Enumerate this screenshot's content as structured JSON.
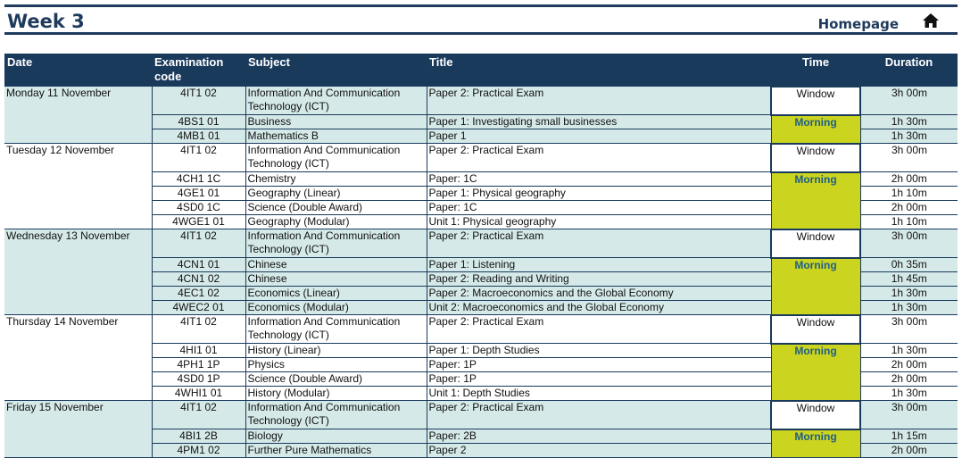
{
  "header": {
    "title": "Week 3",
    "homepage_label": "Homepage"
  },
  "columns": {
    "date": "Date",
    "code": "Examination code",
    "subject": "Subject",
    "title": "Title",
    "time": "Time",
    "duration": "Duration"
  },
  "days": [
    {
      "date": "Monday 11 November",
      "window": {
        "code": "4IT1 02",
        "subject": "Information And Communication Technology (ICT)",
        "title": "Paper 2: Practical Exam",
        "time": "Window",
        "duration": "3h 00m"
      },
      "morning_label": "Morning",
      "exams": [
        {
          "code": "4BS1 01",
          "subject": "Business",
          "title": "Paper 1: Investigating small businesses",
          "duration": "1h 30m"
        },
        {
          "code": "4MB1 01",
          "subject": "Mathematics B",
          "title": "Paper 1",
          "duration": "1h 30m"
        }
      ]
    },
    {
      "date": "Tuesday 12 November",
      "window": {
        "code": "4IT1 02",
        "subject": "Information And Communication Technology (ICT)",
        "title": "Paper 2: Practical Exam",
        "time": "Window",
        "duration": "3h 00m"
      },
      "morning_label": "Morning",
      "exams": [
        {
          "code": "4CH1 1C",
          "subject": "Chemistry",
          "title": "Paper: 1C",
          "duration": "2h 00m"
        },
        {
          "code": "4GE1 01",
          "subject": "Geography (Linear)",
          "title": "Paper 1: Physical geography",
          "duration": "1h 10m"
        },
        {
          "code": "4SD0 1C",
          "subject": "Science (Double Award)",
          "title": "Paper: 1C",
          "duration": "2h 00m"
        },
        {
          "code": "4WGE1 01",
          "subject": "Geography (Modular)",
          "title": "Unit 1: Physical geography",
          "duration": "1h 10m"
        }
      ]
    },
    {
      "date": "Wednesday 13 November",
      "window": {
        "code": "4IT1 02",
        "subject": "Information And Communication Technology (ICT)",
        "title": "Paper 2: Practical Exam",
        "time": "Window",
        "duration": "3h 00m"
      },
      "morning_label": "Morning",
      "exams": [
        {
          "code": "4CN1 01",
          "subject": "Chinese",
          "title": "Paper 1: Listening",
          "duration": "0h 35m"
        },
        {
          "code": "4CN1 02",
          "subject": "Chinese",
          "title": "Paper 2: Reading and Writing",
          "duration": "1h 45m"
        },
        {
          "code": "4EC1 02",
          "subject": "Economics (Linear)",
          "title": "Paper 2: Macroeconomics and the Global Economy",
          "duration": "1h 30m"
        },
        {
          "code": "4WEC2 01",
          "subject": "Economics (Modular)",
          "title": "Unit 2: Macroeconomics and the Global Economy",
          "duration": "1h 30m"
        }
      ]
    },
    {
      "date": "Thursday 14 November",
      "window": {
        "code": "4IT1 02",
        "subject": "Information And Communication Technology (ICT)",
        "title": "Paper 2: Practical Exam",
        "time": "Window",
        "duration": "3h 00m"
      },
      "morning_label": "Morning",
      "exams": [
        {
          "code": "4HI1 01",
          "subject": "History (Linear)",
          "title": "Paper 1: Depth Studies",
          "duration": "1h 30m"
        },
        {
          "code": "4PH1 1P",
          "subject": "Physics",
          "title": "Paper: 1P",
          "duration": "2h 00m"
        },
        {
          "code": "4SD0 1P",
          "subject": "Science (Double Award)",
          "title": "Paper: 1P",
          "duration": "2h 00m"
        },
        {
          "code": "4WHI1 01",
          "subject": "History (Modular)",
          "title": "Unit 1: Depth Studies",
          "duration": "1h 30m"
        }
      ]
    },
    {
      "date": "Friday 15 November",
      "window": {
        "code": "4IT1 02",
        "subject": "Information And Communication Technology (ICT)",
        "title": "Paper 2: Practical Exam",
        "time": "Window",
        "duration": "3h 00m"
      },
      "morning_label": "Morning",
      "exams": [
        {
          "code": "4BI1 2B",
          "subject": "Biology",
          "title": "Paper: 2B",
          "duration": "1h 15m"
        },
        {
          "code": "4PM1 02",
          "subject": "Further Pure Mathematics",
          "title": "Paper 2",
          "duration": "2h 00m"
        }
      ]
    }
  ],
  "icons": {
    "home": "home-icon"
  },
  "colors": {
    "navy": "#1a3a5c",
    "shade": "#d5eae8",
    "morning": "#cbd41e"
  }
}
